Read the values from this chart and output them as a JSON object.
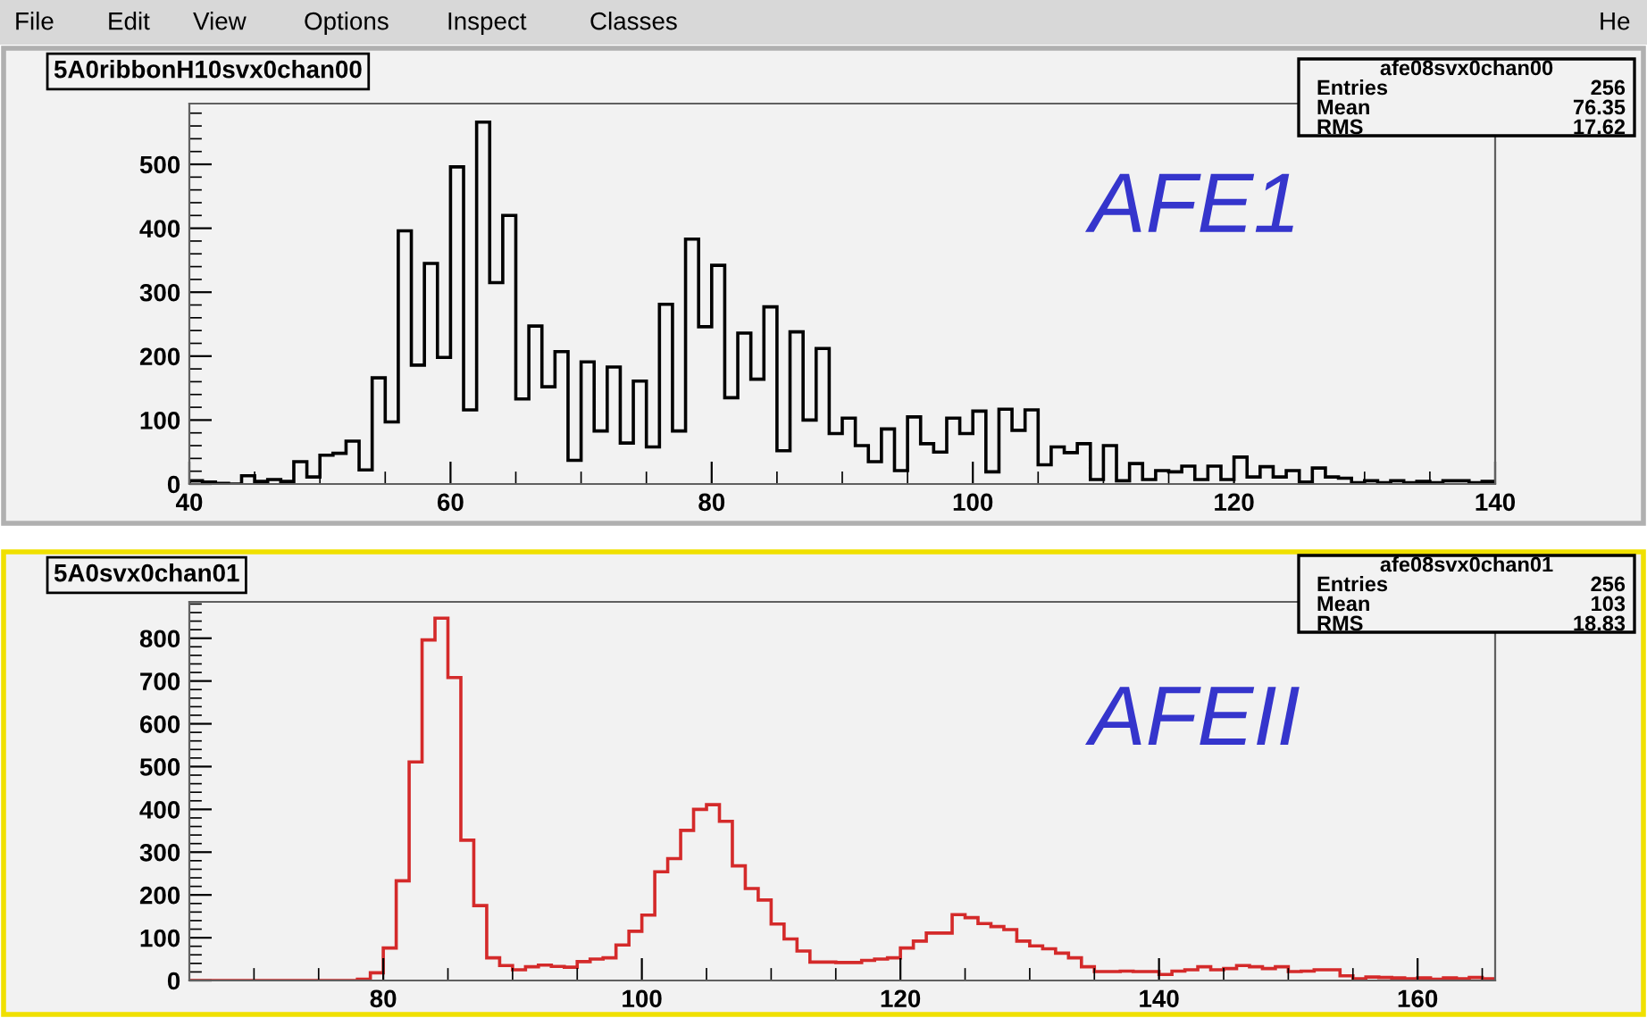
{
  "chart_data": [
    {
      "type": "histogram",
      "title": "5A0ribbonH10svx0chan00",
      "color": "#000000",
      "bins": [
        40,
        41,
        42,
        43,
        44,
        45,
        46,
        47,
        48,
        49,
        50,
        51,
        52,
        53,
        54,
        55,
        56,
        57,
        58,
        59,
        60,
        61,
        62,
        63,
        64,
        65,
        66,
        67,
        68,
        69,
        70,
        71,
        72,
        73,
        74,
        75,
        76,
        77,
        78,
        79,
        80,
        81,
        82,
        83,
        84,
        85,
        86,
        87,
        88,
        89,
        90,
        91,
        92,
        93,
        94,
        95,
        96,
        97,
        98,
        99,
        100,
        101,
        102,
        103,
        104,
        105,
        106,
        107,
        108,
        109,
        110,
        111,
        112,
        113,
        114,
        115,
        116,
        117,
        118,
        119,
        120,
        121,
        122,
        123,
        124,
        125,
        126,
        127,
        128,
        129,
        130,
        131,
        132,
        133,
        134,
        135,
        136,
        137,
        138,
        139,
        140
      ],
      "values": [
        5,
        3,
        1,
        0,
        13,
        4,
        7,
        4,
        35,
        11,
        45,
        48,
        67,
        22,
        166,
        97,
        396,
        186,
        345,
        198,
        496,
        116,
        566,
        315,
        420,
        133,
        247,
        152,
        207,
        37,
        191,
        83,
        183,
        64,
        161,
        58,
        281,
        83,
        383,
        246,
        342,
        135,
        236,
        164,
        277,
        52,
        238,
        100,
        212,
        79,
        103,
        60,
        35,
        86,
        21,
        105,
        63,
        50,
        103,
        79,
        114,
        19,
        117,
        84,
        116,
        30,
        58,
        49,
        63,
        7,
        60,
        5,
        32,
        7,
        21,
        19,
        28,
        7,
        28,
        7,
        42,
        11,
        27,
        11,
        21,
        3,
        25,
        11,
        9,
        2,
        5,
        2,
        5,
        2,
        4,
        2,
        5,
        5,
        2,
        4
      ],
      "xlim": [
        40,
        140
      ],
      "xticks": [
        40,
        60,
        80,
        100,
        120,
        140
      ],
      "ylim": [
        0,
        595
      ],
      "yticks": [
        0,
        100,
        200,
        300,
        400,
        500
      ],
      "grid": false,
      "annotations": [
        "File",
        "Edit",
        "View",
        "Options",
        "Inspect",
        "Classes",
        "He",
        "afe08svx0chan00",
        "Entries",
        "256",
        "Mean",
        "76.35",
        "RMS",
        "17.62",
        "AFE1"
      ]
    },
    {
      "type": "histogram",
      "title": "5A0svx0chan01",
      "color": "#d42a2a",
      "bins": [
        65,
        66,
        67,
        68,
        69,
        70,
        71,
        72,
        73,
        74,
        75,
        76,
        77,
        78,
        79,
        80,
        81,
        82,
        83,
        84,
        85,
        86,
        87,
        88,
        89,
        90,
        91,
        92,
        93,
        94,
        95,
        96,
        97,
        98,
        99,
        100,
        101,
        102,
        103,
        104,
        105,
        106,
        107,
        108,
        109,
        110,
        111,
        112,
        113,
        114,
        115,
        116,
        117,
        118,
        119,
        120,
        121,
        122,
        123,
        124,
        125,
        126,
        127,
        128,
        129,
        130,
        131,
        132,
        133,
        134,
        135,
        136,
        137,
        138,
        139,
        140,
        141,
        142,
        143,
        144,
        145,
        146,
        147,
        148,
        149,
        150,
        151,
        152,
        153,
        154,
        155,
        156,
        157,
        158,
        159,
        160,
        161,
        162,
        163,
        164,
        165,
        166
      ],
      "values": [
        0,
        0,
        0,
        0,
        0,
        0,
        0,
        0,
        0,
        0,
        0,
        0,
        0,
        3,
        18,
        76,
        233,
        511,
        796,
        847,
        708,
        328,
        175,
        53,
        35,
        25,
        32,
        36,
        33,
        31,
        44,
        50,
        53,
        83,
        115,
        153,
        254,
        285,
        351,
        400,
        411,
        372,
        268,
        215,
        188,
        132,
        97,
        69,
        43,
        43,
        42,
        42,
        47,
        50,
        53,
        76,
        92,
        111,
        111,
        154,
        147,
        133,
        126,
        119,
        92,
        81,
        74,
        64,
        53,
        32,
        21,
        21,
        22,
        21,
        21,
        14,
        22,
        25,
        32,
        25,
        28,
        35,
        32,
        28,
        32,
        21,
        22,
        25,
        25,
        11,
        4,
        8,
        7,
        6,
        4,
        6,
        3,
        6,
        4,
        7,
        4
      ],
      "xlim": [
        65,
        166
      ],
      "xticks": [
        80,
        100,
        120,
        140,
        160
      ],
      "ylim": [
        0,
        885
      ],
      "yticks": [
        0,
        100,
        200,
        300,
        400,
        500,
        600,
        700,
        800
      ],
      "grid": false,
      "annotations": [
        "afe08svx0chan01",
        "Entries",
        "256",
        "Mean",
        "103",
        "RMS",
        "18.83",
        "AFEII"
      ]
    }
  ]
}
